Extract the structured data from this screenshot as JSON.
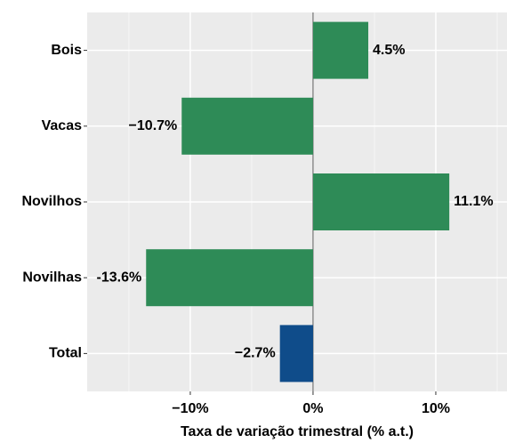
{
  "chart_data": {
    "type": "barh",
    "categories": [
      "Bois",
      "Vacas",
      "Novilhos",
      "Novilhas",
      "Total"
    ],
    "values": [
      4.5,
      -10.7,
      11.1,
      -13.6,
      -2.7
    ],
    "value_labels": [
      "4.5%",
      "−10.7%",
      "11.1%",
      "-13.6%",
      "−2.7%"
    ],
    "colors": [
      "#2e8b57",
      "#2e8b57",
      "#2e8b57",
      "#2e8b57",
      "#0f4c8a"
    ],
    "xlabel": "Taxa de variação trimestral (% a.t.)",
    "xlim": [
      -18.4,
      15.8
    ],
    "xticks": [
      {
        "value": -10,
        "label": "−10%"
      },
      {
        "value": 0,
        "label": "0%"
      },
      {
        "value": 10,
        "label": "10%"
      }
    ],
    "grid": true
  }
}
